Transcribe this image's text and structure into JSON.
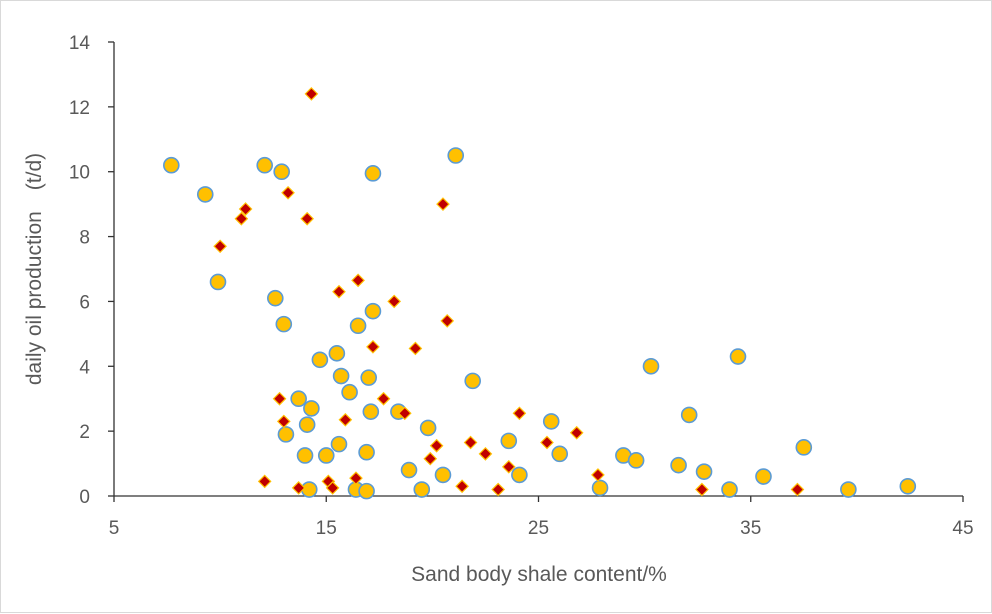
{
  "chart_data": {
    "type": "scatter",
    "xlabel": "Sand body shale content/%",
    "ylabel": "daily  oil production　(t/d)",
    "xlim": [
      5,
      45
    ],
    "ylim": [
      0,
      14
    ],
    "x_ticks": [
      "5",
      "15",
      "25",
      "35",
      "45"
    ],
    "y_ticks": [
      "0",
      "2",
      "4",
      "6",
      "8",
      "10",
      "12",
      "14"
    ],
    "grid": false,
    "legend": "none",
    "series": [
      {
        "marker": "circle",
        "color": "#ffc000",
        "edge_color": "#5b9bd5",
        "x": [
          7.7,
          9.3,
          9.9,
          12.1,
          12.6,
          12.9,
          13.0,
          13.1,
          13.7,
          14.0,
          14.1,
          14.2,
          14.3,
          14.7,
          15.0,
          15.5,
          15.6,
          15.7,
          16.1,
          16.4,
          16.5,
          16.9,
          16.9,
          17.0,
          17.1,
          17.2,
          17.2,
          18.4,
          18.9,
          19.5,
          19.8,
          20.5,
          21.1,
          21.9,
          23.6,
          24.1,
          25.6,
          26.0,
          27.9,
          29.0,
          29.6,
          30.3,
          31.6,
          32.1,
          32.8,
          34.0,
          34.4,
          35.6,
          37.5,
          39.6,
          42.4
        ],
        "y": [
          10.2,
          9.3,
          6.6,
          10.2,
          6.1,
          10.0,
          5.3,
          1.9,
          3.0,
          1.25,
          2.2,
          0.2,
          2.7,
          4.2,
          1.25,
          4.4,
          1.6,
          3.7,
          3.2,
          0.2,
          5.25,
          0.15,
          1.35,
          3.65,
          2.6,
          5.7,
          9.95,
          2.6,
          0.8,
          0.2,
          2.1,
          0.65,
          10.5,
          3.55,
          1.7,
          0.65,
          2.3,
          1.3,
          0.25,
          1.25,
          1.1,
          4.0,
          0.95,
          2.5,
          0.75,
          0.2,
          4.3,
          0.6,
          1.5,
          0.2,
          0.3
        ]
      },
      {
        "marker": "diamond",
        "color": "#c00000",
        "edge_color": "#ffc000",
        "x": [
          10.0,
          11.0,
          11.2,
          12.1,
          12.8,
          13.0,
          13.2,
          13.7,
          14.1,
          14.3,
          15.1,
          15.3,
          15.6,
          15.9,
          16.4,
          16.5,
          17.2,
          17.7,
          18.2,
          18.7,
          19.2,
          19.9,
          20.2,
          20.5,
          20.7,
          21.4,
          21.8,
          22.5,
          23.1,
          23.6,
          24.1,
          25.4,
          26.8,
          27.8,
          32.7,
          37.2
        ],
        "y": [
          7.7,
          8.55,
          8.85,
          0.45,
          3.0,
          2.3,
          9.35,
          0.25,
          8.55,
          12.4,
          0.45,
          0.25,
          6.3,
          2.35,
          0.55,
          6.65,
          4.6,
          3.0,
          6.0,
          2.55,
          4.55,
          1.15,
          1.55,
          9.0,
          5.4,
          0.3,
          1.65,
          1.3,
          0.2,
          0.9,
          2.55,
          1.65,
          1.95,
          0.65,
          0.2,
          0.2
        ]
      }
    ]
  }
}
